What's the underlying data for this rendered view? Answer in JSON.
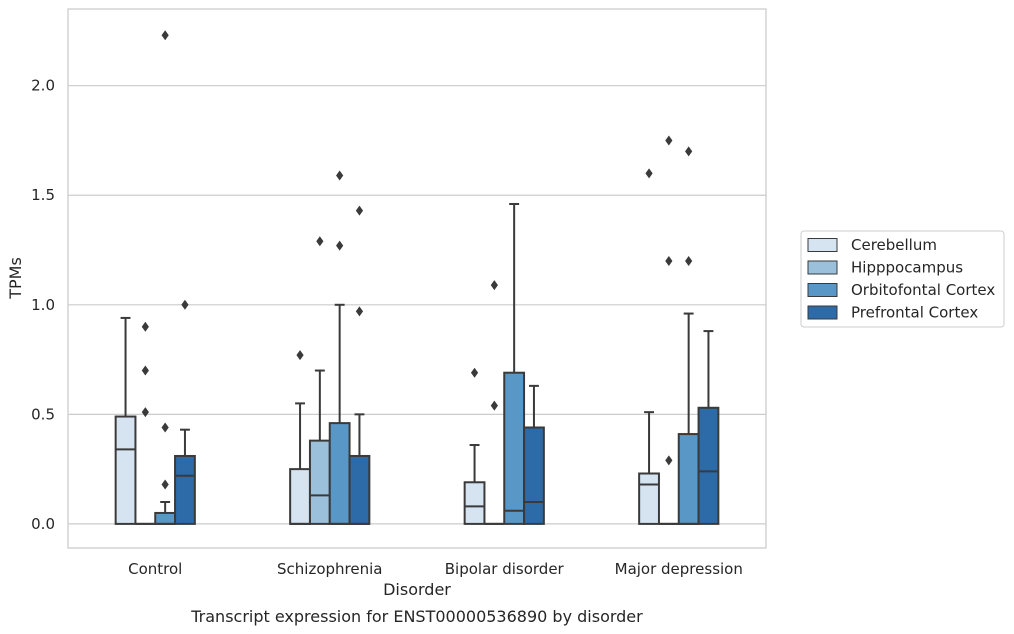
{
  "chart_data": {
    "type": "box",
    "title": "",
    "caption": "Transcript expression for ENST00000536890 by disorder",
    "xlabel": "Disorder",
    "ylabel": "TPMs",
    "categories": [
      "Control",
      "Schizophrenia",
      "Bipolar disorder",
      "Major depression"
    ],
    "ylim": [
      -0.11,
      2.35
    ],
    "yticks": [
      0.0,
      0.5,
      1.0,
      1.5,
      2.0
    ],
    "ytick_labels": [
      "0.0",
      "0.5",
      "1.0",
      "1.5",
      "2.0"
    ],
    "grid": "horizontal",
    "legend_position": "right",
    "series": [
      {
        "name": "Cerebellum",
        "color": "#d6e4f2",
        "boxes": [
          {
            "q1": 0.0,
            "median": 0.34,
            "q3": 0.49,
            "whisker_low": 0.0,
            "whisker_high": 0.94,
            "outliers": []
          },
          {
            "q1": 0.0,
            "median": 0.0,
            "q3": 0.25,
            "whisker_low": 0.0,
            "whisker_high": 0.55,
            "outliers": [
              0.77
            ]
          },
          {
            "q1": 0.0,
            "median": 0.08,
            "q3": 0.19,
            "whisker_low": 0.0,
            "whisker_high": 0.36,
            "outliers": [
              0.69
            ]
          },
          {
            "q1": 0.0,
            "median": 0.18,
            "q3": 0.23,
            "whisker_low": 0.0,
            "whisker_high": 0.51,
            "outliers": [
              1.6
            ]
          }
        ]
      },
      {
        "name": "Hipppocampus",
        "color": "#9ac0dc",
        "boxes": [
          {
            "q1": 0.0,
            "median": 0.0,
            "q3": 0.0,
            "whisker_low": 0.0,
            "whisker_high": 0.0,
            "outliers": [
              0.51,
              0.7,
              0.9
            ]
          },
          {
            "q1": 0.0,
            "median": 0.13,
            "q3": 0.38,
            "whisker_low": 0.0,
            "whisker_high": 0.7,
            "outliers": [
              1.29
            ]
          },
          {
            "q1": 0.0,
            "median": 0.0,
            "q3": 0.0,
            "whisker_low": 0.0,
            "whisker_high": 0.0,
            "outliers": [
              0.54,
              1.09
            ]
          },
          {
            "q1": 0.0,
            "median": 0.0,
            "q3": 0.0,
            "whisker_low": 0.0,
            "whisker_high": 0.0,
            "outliers": [
              0.29,
              1.2,
              1.75
            ]
          }
        ]
      },
      {
        "name": "Orbitofontal Cortex",
        "color": "#5997c7",
        "boxes": [
          {
            "q1": 0.0,
            "median": 0.0,
            "q3": 0.05,
            "whisker_low": 0.0,
            "whisker_high": 0.1,
            "outliers": [
              0.18,
              0.44,
              2.23
            ]
          },
          {
            "q1": 0.0,
            "median": 0.0,
            "q3": 0.46,
            "whisker_low": 0.0,
            "whisker_high": 1.0,
            "outliers": [
              1.27,
              1.59
            ]
          },
          {
            "q1": 0.0,
            "median": 0.06,
            "q3": 0.69,
            "whisker_low": 0.0,
            "whisker_high": 1.46,
            "outliers": []
          },
          {
            "q1": 0.0,
            "median": 0.0,
            "q3": 0.41,
            "whisker_low": 0.0,
            "whisker_high": 0.96,
            "outliers": [
              1.2,
              1.7
            ]
          }
        ]
      },
      {
        "name": "Prefrontal Cortex",
        "color": "#2c6aa8",
        "boxes": [
          {
            "q1": 0.0,
            "median": 0.22,
            "q3": 0.31,
            "whisker_low": 0.0,
            "whisker_high": 0.43,
            "outliers": [
              1.0
            ]
          },
          {
            "q1": 0.0,
            "median": 0.0,
            "q3": 0.31,
            "whisker_low": 0.0,
            "whisker_high": 0.5,
            "outliers": [
              0.97,
              1.43
            ]
          },
          {
            "q1": 0.0,
            "median": 0.1,
            "q3": 0.44,
            "whisker_low": 0.0,
            "whisker_high": 0.63,
            "outliers": []
          },
          {
            "q1": 0.0,
            "median": 0.24,
            "q3": 0.53,
            "whisker_low": 0.0,
            "whisker_high": 0.88,
            "outliers": []
          }
        ]
      }
    ]
  }
}
